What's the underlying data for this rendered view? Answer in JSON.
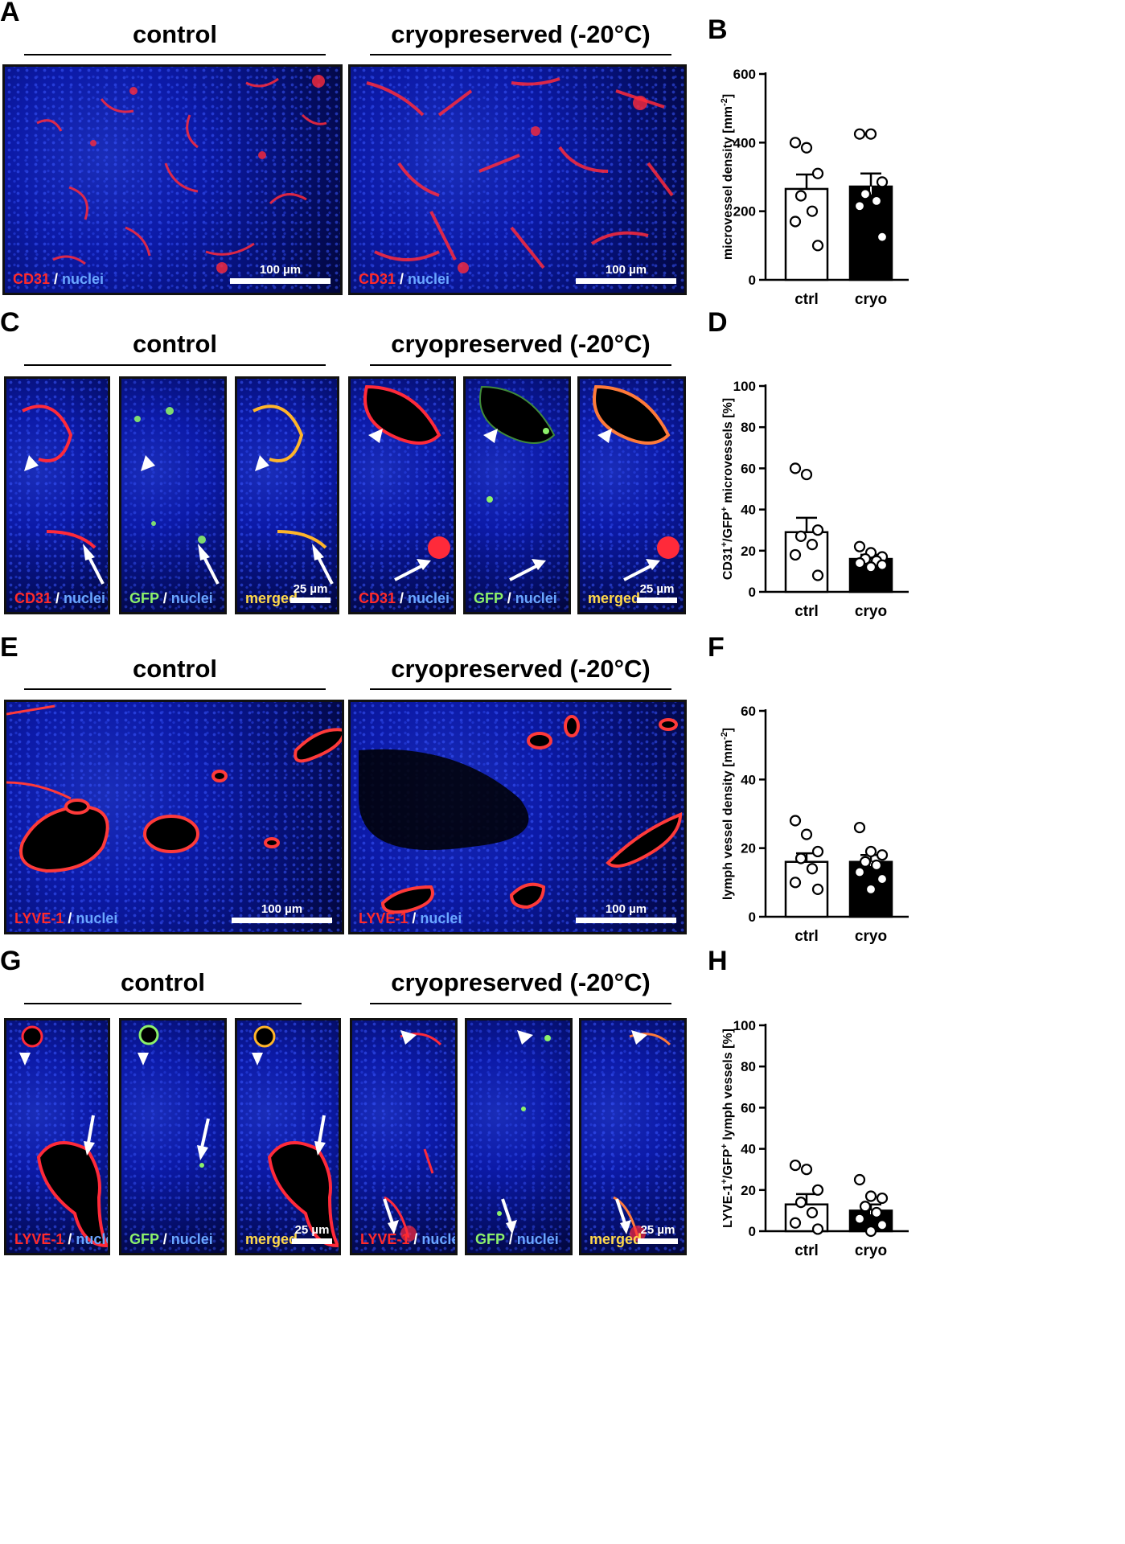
{
  "panels": {
    "A": {
      "letter": "A",
      "left_title": "control",
      "right_title": "cryopreserved (-20°C)"
    },
    "B": {
      "letter": "B"
    },
    "C": {
      "letter": "C",
      "left_title": "control",
      "right_title": "cryopreserved (-20°C)"
    },
    "D": {
      "letter": "D"
    },
    "E": {
      "letter": "E",
      "left_title": "control",
      "right_title": "cryopreserved (-20°C)"
    },
    "F": {
      "letter": "F"
    },
    "G": {
      "letter": "G",
      "left_title": "control",
      "right_title": "cryopreserved (-20°C)"
    },
    "H": {
      "letter": "H"
    }
  },
  "image_labels": {
    "cd31": "CD31",
    "lyve1": "LYVE-1",
    "gfp": "GFP",
    "merged": "merged",
    "nuclei": "nuclei",
    "slash": " / "
  },
  "scale_bars": {
    "large": "100 µm",
    "small": "25 µm"
  },
  "colors": {
    "stain_red": "#ff2a2a",
    "gfp_green": "#8cf06a",
    "merged_yellow": "#ffd84a",
    "nuclei_blue": "#6aa6ff"
  },
  "chart_data": [
    {
      "id": "B",
      "type": "bar",
      "categories": [
        "ctrl",
        "cryo"
      ],
      "values": [
        265,
        272
      ],
      "errors": [
        42,
        38
      ],
      "ylabel_base": "microvessel density [mm",
      "ylabel_sup": "-2",
      "ylabel_end": "]",
      "ylim": [
        0,
        600
      ],
      "yticks": [
        0,
        200,
        400,
        600
      ],
      "points": [
        [
          400,
          385,
          310,
          245,
          200,
          170,
          100
        ],
        [
          425,
          425,
          285,
          250,
          230,
          215,
          125
        ]
      ],
      "fills": [
        "#ffffff",
        "#000000"
      ]
    },
    {
      "id": "D",
      "type": "bar",
      "categories": [
        "ctrl",
        "cryo"
      ],
      "values": [
        29,
        16
      ],
      "errors": [
        7,
        2
      ],
      "ylabel_base": "CD31",
      "ylabel_sup": "+",
      "ylabel_mid": "/GFP",
      "ylabel_sup2": "+",
      "ylabel_end": " microvessels [%]",
      "ylim": [
        0,
        100
      ],
      "yticks": [
        0,
        20,
        40,
        60,
        80,
        100
      ],
      "points": [
        [
          60,
          57,
          30,
          27,
          23,
          18,
          8
        ],
        [
          22,
          19,
          17,
          16,
          15,
          14,
          13,
          12
        ]
      ],
      "fills": [
        "#ffffff",
        "#000000"
      ]
    },
    {
      "id": "F",
      "type": "bar",
      "categories": [
        "ctrl",
        "cryo"
      ],
      "values": [
        16,
        16
      ],
      "errors": [
        2.5,
        2
      ],
      "ylabel_base": "lymph vessel density [mm",
      "ylabel_sup": "-2",
      "ylabel_end": "]",
      "ylim": [
        0,
        60
      ],
      "yticks": [
        0,
        20,
        40,
        60
      ],
      "points": [
        [
          28,
          24,
          19,
          17,
          14,
          10,
          8
        ],
        [
          26,
          19,
          18,
          16,
          15,
          13,
          11,
          8
        ]
      ],
      "fills": [
        "#ffffff",
        "#000000"
      ]
    },
    {
      "id": "H",
      "type": "bar",
      "categories": [
        "ctrl",
        "cryo"
      ],
      "values": [
        13,
        10
      ],
      "errors": [
        5,
        3
      ],
      "ylabel_base": "LYVE-1",
      "ylabel_sup": "+",
      "ylabel_mid": "/GFP",
      "ylabel_sup2": "+",
      "ylabel_end": " lymph vessels [%]",
      "ylim": [
        0,
        100
      ],
      "yticks": [
        0,
        20,
        40,
        60,
        80,
        100
      ],
      "points": [
        [
          32,
          30,
          20,
          14,
          9,
          4,
          1
        ],
        [
          25,
          17,
          16,
          12,
          9,
          6,
          3,
          0
        ]
      ],
      "fills": [
        "#ffffff",
        "#000000"
      ]
    }
  ]
}
